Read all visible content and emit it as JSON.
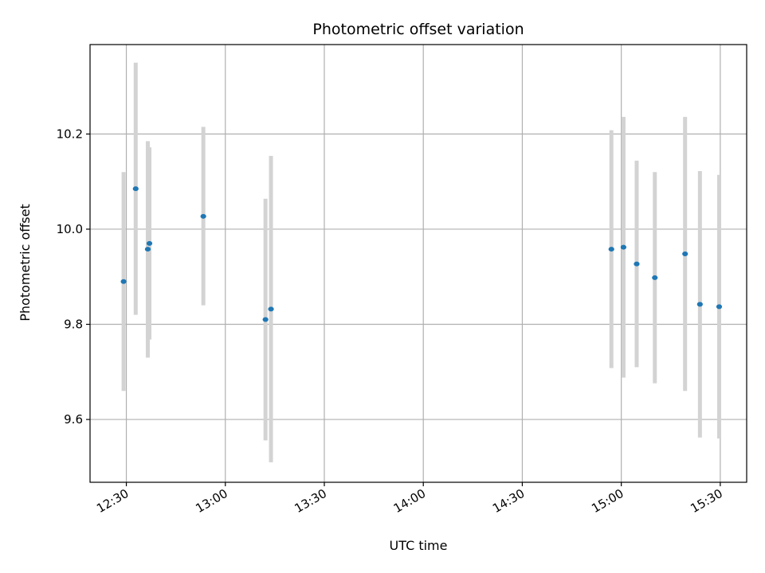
{
  "chart_data": {
    "type": "scatter",
    "title": "Photometric offset variation",
    "xlabel": "UTC time",
    "ylabel": "Photometric offset",
    "grid": true,
    "xlim": [
      "12:19",
      "15:38"
    ],
    "ylim": [
      9.468,
      10.388
    ],
    "x_ticks": [
      "12:30",
      "13:00",
      "13:30",
      "14:00",
      "14:30",
      "15:00",
      "15:30"
    ],
    "y_ticks": [
      9.6,
      9.8,
      10.0,
      10.2
    ],
    "y_tick_labels": [
      "9.6",
      "9.8",
      "10.0",
      "10.2"
    ],
    "colors": {
      "point": "#1f77b4",
      "errorbar": "#d3d3d3",
      "grid": "#b0b0b0"
    },
    "points": [
      {
        "x": "12:29:10",
        "y": 9.89,
        "yerr_low": 9.66,
        "yerr_high": 10.12
      },
      {
        "x": "12:32:50",
        "y": 10.085,
        "yerr_low": 9.82,
        "yerr_high": 10.35
      },
      {
        "x": "12:36:30",
        "y": 9.958,
        "yerr_low": 9.73,
        "yerr_high": 10.185
      },
      {
        "x": "12:37:00",
        "y": 9.97,
        "yerr_low": 9.768,
        "yerr_high": 10.172
      },
      {
        "x": "12:53:20",
        "y": 10.027,
        "yerr_low": 9.84,
        "yerr_high": 10.215
      },
      {
        "x": "13:12:10",
        "y": 9.81,
        "yerr_low": 9.556,
        "yerr_high": 10.064
      },
      {
        "x": "13:13:50",
        "y": 9.832,
        "yerr_low": 9.51,
        "yerr_high": 10.154
      },
      {
        "x": "14:57:00",
        "y": 9.958,
        "yerr_low": 9.708,
        "yerr_high": 10.208
      },
      {
        "x": "15:00:40",
        "y": 9.962,
        "yerr_low": 9.688,
        "yerr_high": 10.236
      },
      {
        "x": "15:04:40",
        "y": 9.927,
        "yerr_low": 9.71,
        "yerr_high": 10.144
      },
      {
        "x": "15:10:10",
        "y": 9.898,
        "yerr_low": 9.676,
        "yerr_high": 10.12
      },
      {
        "x": "15:19:20",
        "y": 9.948,
        "yerr_low": 9.66,
        "yerr_high": 10.236
      },
      {
        "x": "15:23:50",
        "y": 9.842,
        "yerr_low": 9.562,
        "yerr_high": 10.122
      },
      {
        "x": "15:29:40",
        "y": 9.837,
        "yerr_low": 9.56,
        "yerr_high": 10.114
      }
    ]
  }
}
